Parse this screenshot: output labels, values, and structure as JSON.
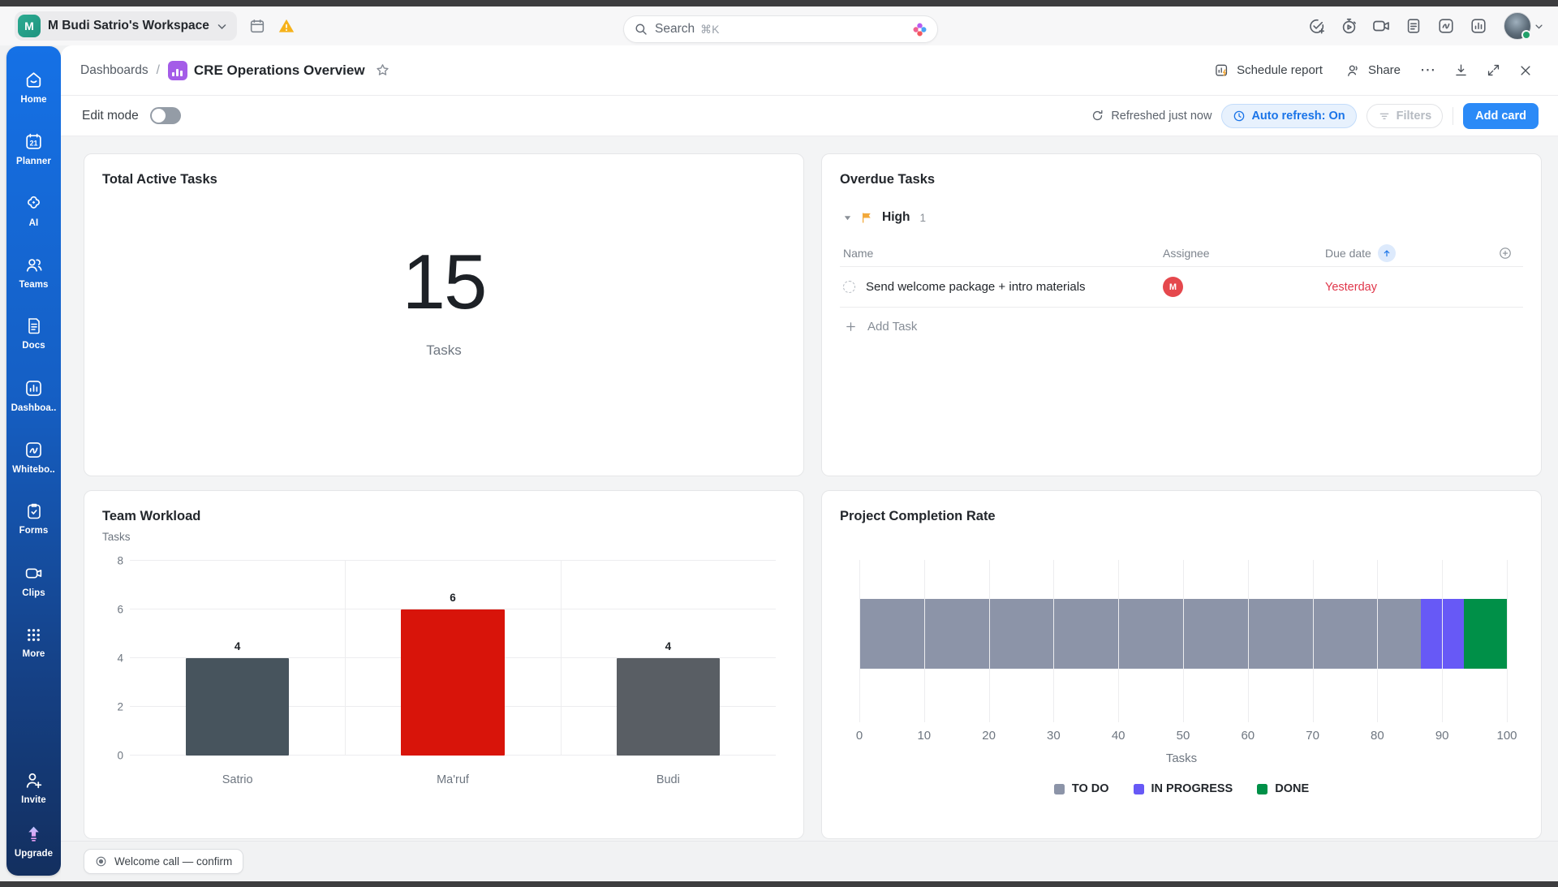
{
  "topbar": {
    "workspace": {
      "initial": "M",
      "name": "M Budi Satrio's Workspace"
    },
    "search": {
      "placeholder": "Search",
      "shortcut": "⌘K"
    }
  },
  "sidebar": {
    "items": [
      {
        "label": "Home"
      },
      {
        "label": "Planner"
      },
      {
        "label": "AI"
      },
      {
        "label": "Teams"
      },
      {
        "label": "Docs"
      },
      {
        "label": "Dashboa.."
      },
      {
        "label": "Whitebo.."
      },
      {
        "label": "Forms"
      },
      {
        "label": "Clips"
      },
      {
        "label": "More"
      }
    ],
    "invite": "Invite",
    "upgrade": "Upgrade"
  },
  "header": {
    "breadcrumb_root": "Dashboards",
    "breadcrumb_sep": "/",
    "title": "CRE Operations Overview",
    "schedule_report": "Schedule report",
    "share": "Share",
    "more": "⋯"
  },
  "toolbar": {
    "edit_mode": "Edit mode",
    "refreshed": "Refreshed just now",
    "auto_refresh": "Auto refresh: On",
    "filters": "Filters",
    "add_card": "Add card"
  },
  "cards": {
    "total_active": {
      "title": "Total Active Tasks",
      "value": "15",
      "unit": "Tasks"
    },
    "overdue": {
      "title": "Overdue Tasks",
      "group": {
        "label": "High",
        "count": "1"
      },
      "columns": {
        "name": "Name",
        "assignee": "Assignee",
        "due": "Due date"
      },
      "rows": [
        {
          "name": "Send welcome package + intro materials",
          "assignee_initial": "M",
          "due": "Yesterday"
        }
      ],
      "add_task": "Add Task"
    }
  },
  "chart_data": [
    {
      "type": "bar",
      "title": "Team Workload",
      "ylabel": "Tasks",
      "categories": [
        "Satrio",
        "Ma'ruf",
        "Budi"
      ],
      "values": [
        4,
        6,
        4
      ],
      "colors": [
        "#47545D",
        "#D8140A",
        "#595E64"
      ],
      "ylim": [
        0,
        8
      ],
      "yticks": [
        0,
        2,
        4,
        6,
        8
      ],
      "grid": true,
      "value_labels": true,
      "legend_position": "none"
    },
    {
      "type": "bar",
      "orientation": "horizontal",
      "stacked": true,
      "title": "Project Completion Rate",
      "xlabel": "Tasks",
      "xlim": [
        0,
        100
      ],
      "xticks": [
        0,
        10,
        20,
        30,
        40,
        50,
        60,
        70,
        80,
        90,
        100
      ],
      "series": [
        {
          "name": "TO DO",
          "value": 86.7,
          "color": "#8C94A8"
        },
        {
          "name": "IN PROGRESS",
          "value": 6.7,
          "color": "#6759F6"
        },
        {
          "name": "DONE",
          "value": 6.6,
          "color": "#009048"
        }
      ],
      "grid": true,
      "legend_position": "bottom"
    }
  ],
  "footer": {
    "pill": "Welcome call — confirm"
  },
  "colors": {
    "accent_blue": "#2b8af7",
    "sidebar_top": "#1571e6",
    "sidebar_bottom": "#132f5f",
    "flag_amber": "#f2a93b",
    "overdue_red": "#e0364a",
    "avatar_red": "#e5484d"
  }
}
